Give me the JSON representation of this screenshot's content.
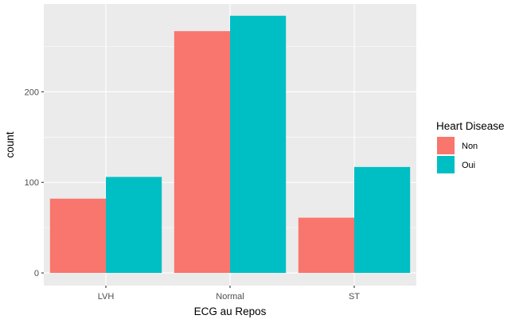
{
  "chart_data": {
    "type": "bar",
    "xlabel": "ECG au Repos",
    "ylabel": "count",
    "categories": [
      "LVH",
      "Normal",
      "ST"
    ],
    "series": [
      {
        "name": "Non",
        "values": [
          82,
          267,
          61
        ],
        "color": "#F8766D"
      },
      {
        "name": "Oui",
        "values": [
          106,
          284,
          117
        ],
        "color": "#00BFC4"
      }
    ],
    "yticks": [
      0,
      100,
      200
    ],
    "ylim": [
      -14,
      297
    ],
    "grid": true,
    "legend": {
      "title": "Heart Disease",
      "position": "right"
    },
    "panel_background": "#EBEBEB",
    "grid_color": "#FFFFFF"
  }
}
